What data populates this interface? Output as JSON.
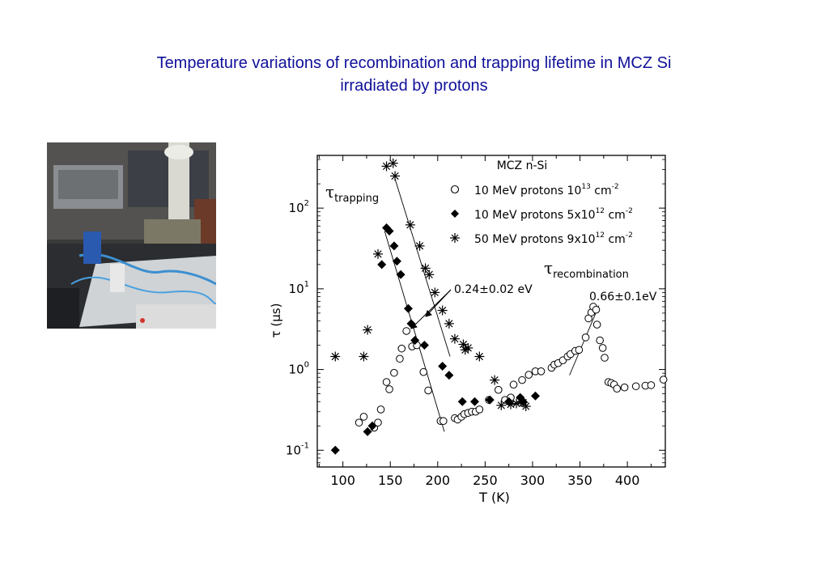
{
  "page": {
    "title_line1": "Temperature variations of recombination and trapping lifetime in MCZ Si",
    "title_line2": "irradiated by protons"
  },
  "colors": {
    "title": "#10109a",
    "axis": "#000000",
    "background": "#ffffff"
  },
  "photo": {
    "description_icon": "lab-setup-photo"
  },
  "chart_data": {
    "type": "scatter",
    "title": "MCZ n-Si",
    "xlabel": "T (K)",
    "ylabel": "τ  (μs)",
    "xlim": [
      73,
      440
    ],
    "ylim": [
      0.062,
      450
    ],
    "yscale": "log",
    "x_ticks": [
      100,
      150,
      200,
      250,
      300,
      350,
      400
    ],
    "y_ticks": [
      {
        "value": 0.1,
        "base": "10",
        "exp": "-1"
      },
      {
        "value": 1,
        "base": "10",
        "exp": "0"
      },
      {
        "value": 10,
        "base": "10",
        "exp": "1"
      },
      {
        "value": 100,
        "base": "10",
        "exp": "2"
      }
    ],
    "legend_position": "top-right",
    "series": [
      {
        "name": "10 MeV protons     10",
        "name_exp": "13",
        "name_unit": " cm",
        "name_unit_exp": "-2",
        "marker": "circle",
        "points": [
          [
            117,
            0.22
          ],
          [
            122,
            0.26
          ],
          [
            133,
            0.19
          ],
          [
            137,
            0.22
          ],
          [
            140,
            0.32
          ],
          [
            146,
            0.7
          ],
          [
            149,
            0.57
          ],
          [
            154,
            0.91
          ],
          [
            160,
            1.36
          ],
          [
            162,
            1.82
          ],
          [
            167,
            3.0
          ],
          [
            173,
            1.93
          ],
          [
            178,
            2.0
          ],
          [
            185,
            0.93
          ],
          [
            190,
            0.55
          ],
          [
            203,
            0.23
          ],
          [
            206,
            0.23
          ],
          [
            218,
            0.25
          ],
          [
            221,
            0.24
          ],
          [
            225,
            0.26
          ],
          [
            228,
            0.28
          ],
          [
            232,
            0.29
          ],
          [
            236,
            0.3
          ],
          [
            240,
            0.3
          ],
          [
            244,
            0.32
          ],
          [
            254,
            0.42
          ],
          [
            264,
            0.56
          ],
          [
            271,
            0.42
          ],
          [
            277,
            0.45
          ],
          [
            280,
            0.65
          ],
          [
            289,
            0.74
          ],
          [
            296,
            0.86
          ],
          [
            303,
            0.95
          ],
          [
            309,
            0.95
          ],
          [
            320,
            1.05
          ],
          [
            323,
            1.15
          ],
          [
            327,
            1.2
          ],
          [
            332,
            1.3
          ],
          [
            337,
            1.45
          ],
          [
            340,
            1.55
          ],
          [
            345,
            1.7
          ],
          [
            349,
            1.75
          ],
          [
            356,
            2.5
          ],
          [
            359,
            4.3
          ],
          [
            362,
            5.1
          ],
          [
            364,
            6.0
          ],
          [
            367,
            5.5
          ],
          [
            368,
            3.6
          ],
          [
            371,
            2.3
          ],
          [
            374,
            1.85
          ],
          [
            376,
            1.4
          ],
          [
            380,
            0.7
          ],
          [
            383,
            0.68
          ],
          [
            386,
            0.65
          ],
          [
            389,
            0.58
          ],
          [
            397,
            0.6
          ],
          [
            409,
            0.62
          ],
          [
            419,
            0.63
          ],
          [
            425,
            0.64
          ],
          [
            438,
            0.75
          ]
        ]
      },
      {
        "name": "10 MeV protons 5x10",
        "name_exp": "12",
        "name_unit": " cm",
        "name_unit_exp": "-2",
        "marker": "diamond",
        "points": [
          [
            92,
            0.1
          ],
          [
            126,
            0.17
          ],
          [
            131,
            0.2
          ],
          [
            141,
            20
          ],
          [
            146,
            57
          ],
          [
            149,
            52
          ],
          [
            154,
            34
          ],
          [
            157,
            22
          ],
          [
            161,
            15
          ],
          [
            169,
            5.7
          ],
          [
            172,
            3.7
          ],
          [
            176,
            2.3
          ],
          [
            186,
            2.0
          ],
          [
            205,
            1.1
          ],
          [
            212,
            0.85
          ],
          [
            226,
            0.4
          ],
          [
            239,
            0.4
          ],
          [
            255,
            0.42
          ],
          [
            275,
            0.4
          ],
          [
            287,
            0.45
          ],
          [
            290,
            0.4
          ],
          [
            303,
            0.47
          ]
        ]
      },
      {
        "name": "50 MeV protons 9x10",
        "name_exp": "12",
        "name_unit": " cm",
        "name_unit_exp": "-2",
        "marker": "asterisk",
        "points": [
          [
            92,
            1.45
          ],
          [
            122,
            1.45
          ],
          [
            126,
            3.1
          ],
          [
            137,
            27
          ],
          [
            146,
            330
          ],
          [
            153,
            360
          ],
          [
            155,
            250
          ],
          [
            171,
            62
          ],
          [
            181,
            34
          ],
          [
            187,
            18
          ],
          [
            191,
            15
          ],
          [
            197,
            9.0
          ],
          [
            205,
            5.4
          ],
          [
            212,
            3.7
          ],
          [
            218,
            2.4
          ],
          [
            227,
            2.05
          ],
          [
            229,
            1.75
          ],
          [
            232,
            1.85
          ],
          [
            244,
            1.45
          ],
          [
            260,
            0.74
          ],
          [
            267,
            0.36
          ],
          [
            277,
            0.37
          ],
          [
            283,
            0.38
          ],
          [
            288,
            0.4
          ],
          [
            290,
            0.39
          ],
          [
            293,
            0.35
          ]
        ]
      }
    ],
    "fit_lines": [
      {
        "label": "trapping-fit",
        "from": [
          155,
          230
        ],
        "to": [
          213,
          1.45
        ]
      },
      {
        "label": "recombination-fit-1",
        "from": [
          144,
          52
        ],
        "to": [
          207,
          0.17
        ]
      },
      {
        "label": "recombination-fit-2",
        "from": [
          339,
          0.85
        ],
        "to": [
          370,
          6.2
        ]
      }
    ],
    "annotations": {
      "trapping_symbol": "τ",
      "trapping_sub": "trapping",
      "recombination_symbol": "τ",
      "recombination_sub": "recombination",
      "activation_low": "0.24±0.02 eV",
      "activation_high": "0.66±0.1eV"
    }
  }
}
